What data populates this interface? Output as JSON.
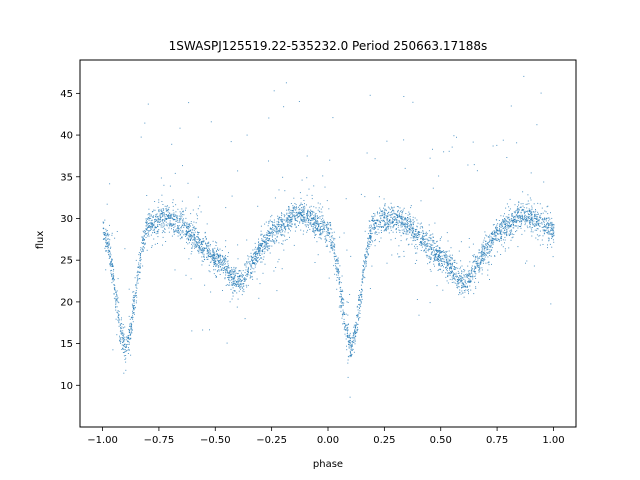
{
  "chart_data": {
    "type": "scatter",
    "title": "1SWASPJ125519.22-535232.0 Period 250663.17188s",
    "xlabel": "phase",
    "ylabel": "flux",
    "xlim": [
      -1.1,
      1.1
    ],
    "ylim": [
      5,
      49
    ],
    "xticks": [
      -1.0,
      -0.75,
      -0.5,
      -0.25,
      0.0,
      0.25,
      0.5,
      0.75,
      1.0
    ],
    "xtick_labels": [
      "−1.00",
      "−0.75",
      "−0.50",
      "−0.25",
      "0.00",
      "0.25",
      "0.50",
      "0.75",
      "1.00"
    ],
    "yticks": [
      10,
      15,
      20,
      25,
      30,
      35,
      40,
      45
    ],
    "ytick_labels": [
      "10",
      "15",
      "20",
      "25",
      "30",
      "35",
      "40",
      "45"
    ],
    "grid": false,
    "point_color": "#1f77b4",
    "series": [
      {
        "profile_points": [
          [
            0.0,
            28.5
          ],
          [
            0.02,
            27.0
          ],
          [
            0.04,
            24.0
          ],
          [
            0.06,
            20.0
          ],
          [
            0.08,
            16.5
          ],
          [
            0.1,
            14.5
          ],
          [
            0.12,
            16.5
          ],
          [
            0.14,
            20.0
          ],
          [
            0.16,
            24.5
          ],
          [
            0.18,
            27.5
          ],
          [
            0.2,
            29.3
          ],
          [
            0.25,
            30.0
          ],
          [
            0.3,
            30.0
          ],
          [
            0.35,
            29.3
          ],
          [
            0.4,
            28.0
          ],
          [
            0.45,
            26.5
          ],
          [
            0.5,
            25.3
          ],
          [
            0.55,
            24.0
          ],
          [
            0.58,
            22.8
          ],
          [
            0.6,
            22.2
          ],
          [
            0.62,
            22.8
          ],
          [
            0.65,
            24.3
          ],
          [
            0.7,
            26.5
          ],
          [
            0.75,
            28.3
          ],
          [
            0.8,
            29.5
          ],
          [
            0.85,
            30.5
          ],
          [
            0.9,
            30.3
          ],
          [
            0.95,
            29.5
          ],
          [
            1.0,
            28.5
          ]
        ],
        "scatter_sigma": 0.8
      }
    ]
  }
}
